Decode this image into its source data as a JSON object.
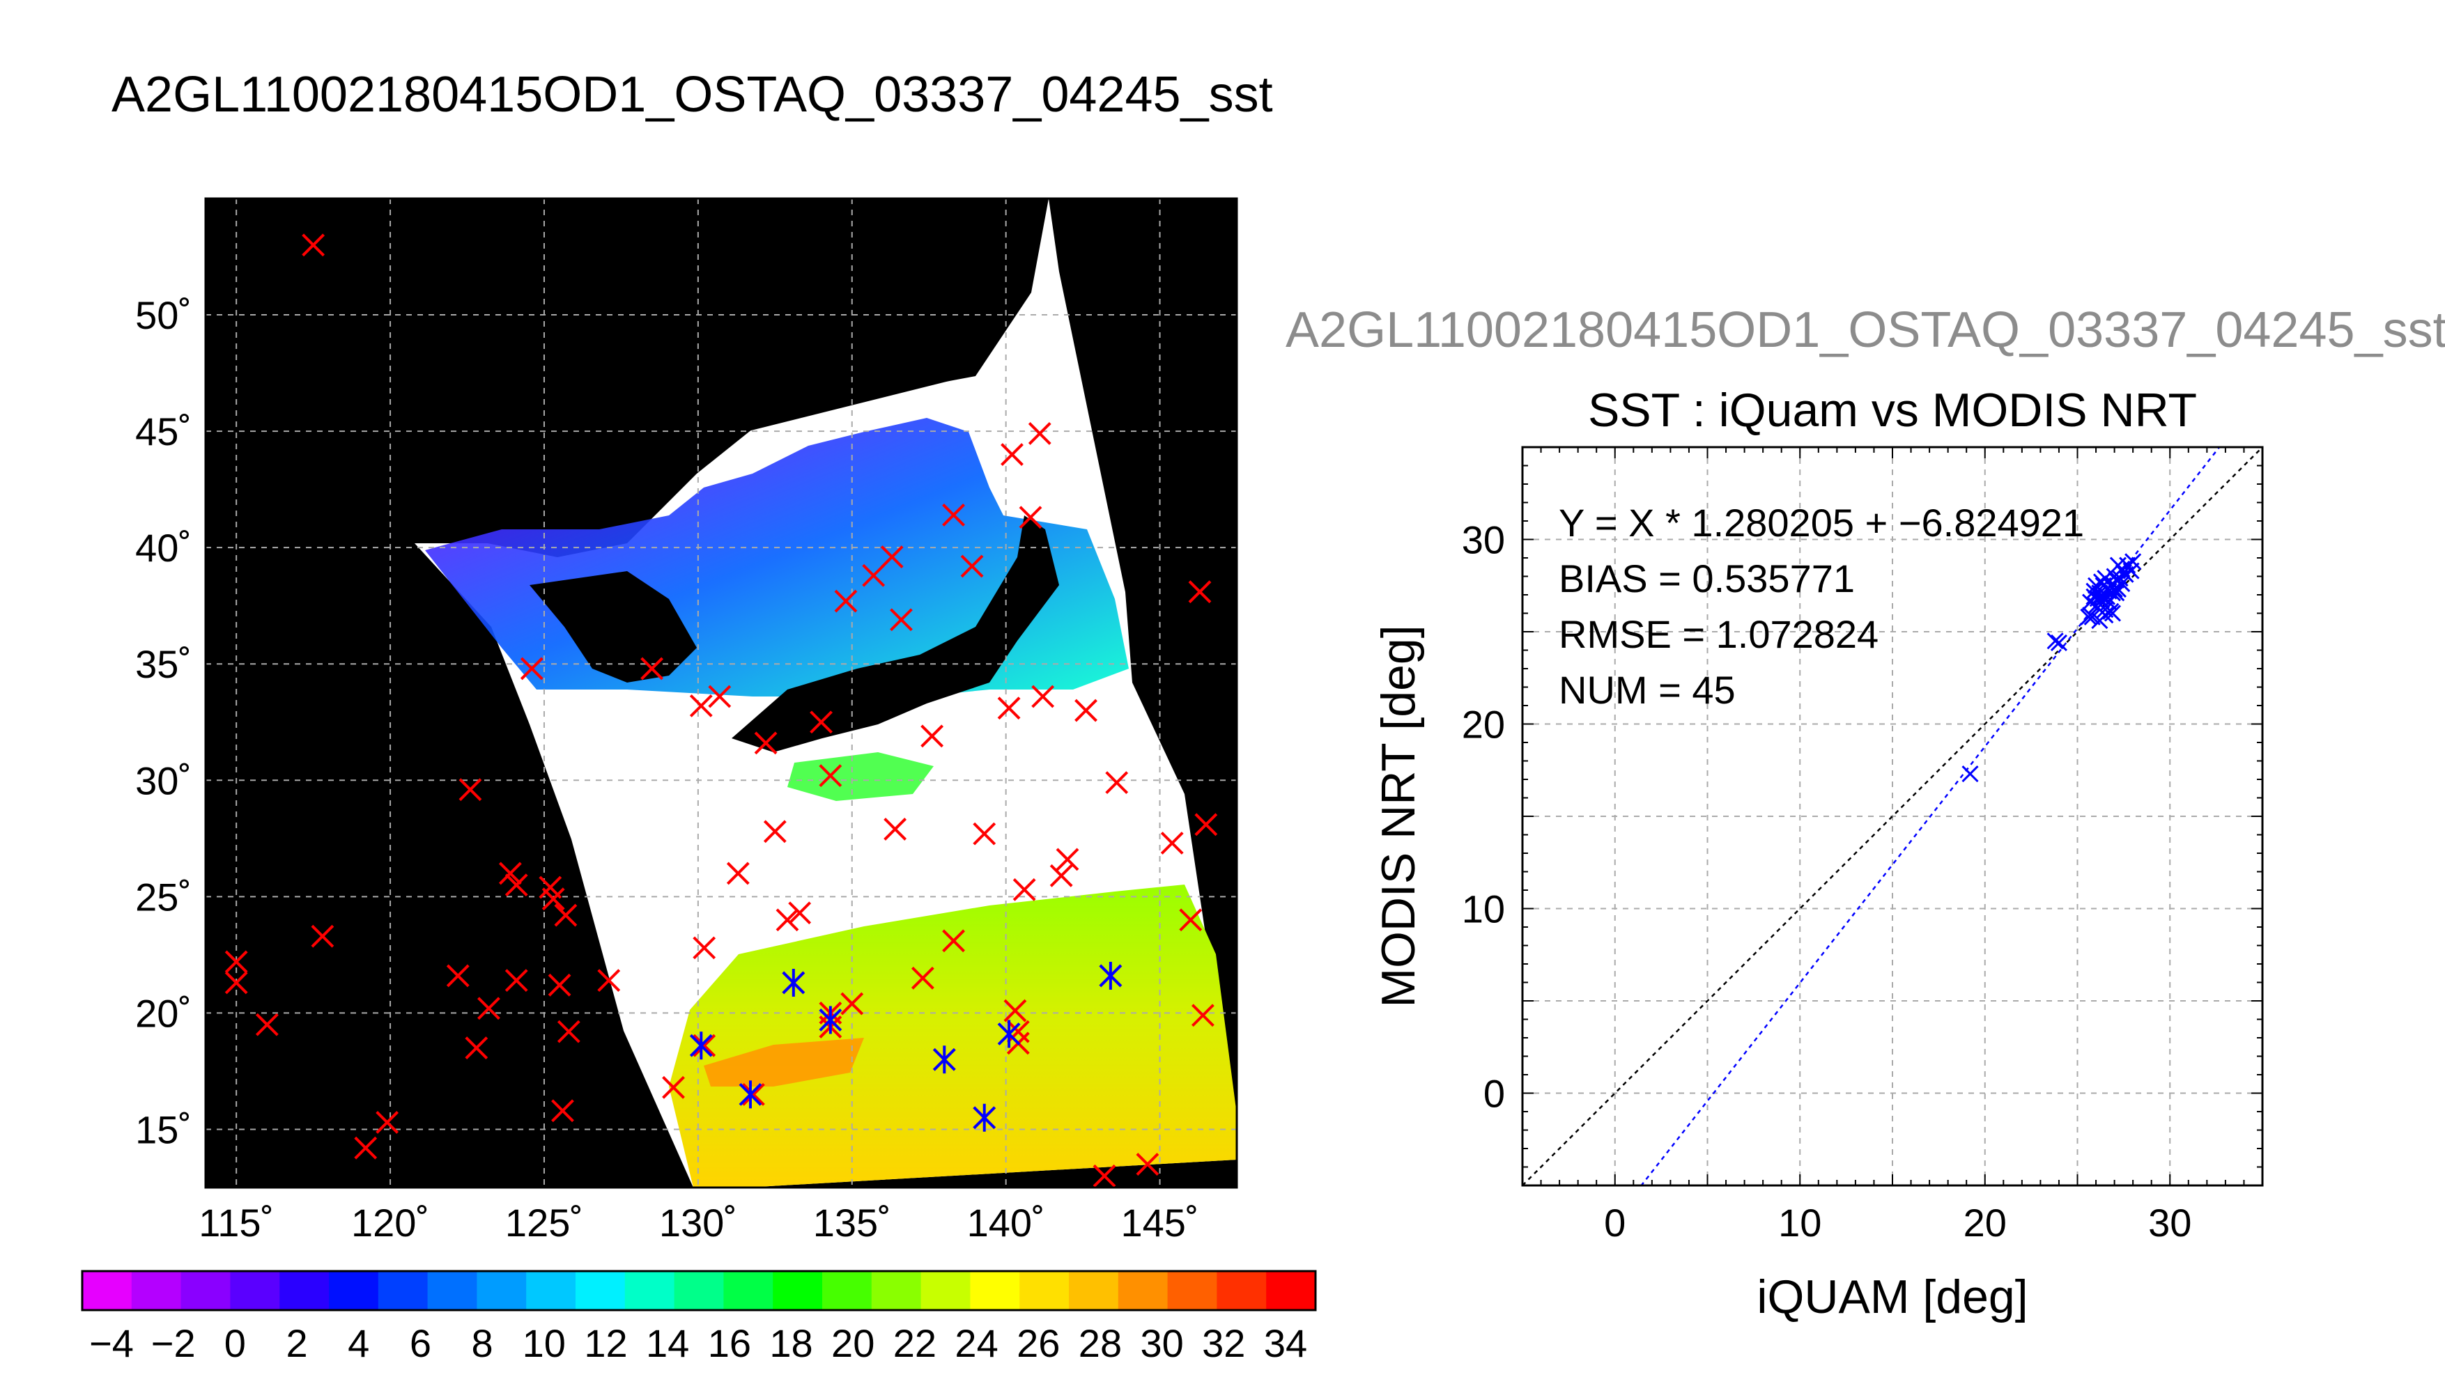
{
  "main_title": "A2GL11002180415OD1_OSTAQ_03337_04245_sst",
  "map": {
    "lon_ticks": [
      "115˚",
      "120˚",
      "125˚",
      "130˚",
      "135˚",
      "140˚",
      "145˚"
    ],
    "lat_ticks": [
      "50˚",
      "45˚",
      "40˚",
      "35˚",
      "30˚",
      "25˚",
      "20˚",
      "15˚"
    ],
    "lon_range": [
      114,
      147.5
    ],
    "lat_range": [
      12.5,
      55
    ],
    "colorbar_labels": [
      "−4",
      "−2",
      "0",
      "2",
      "4",
      "6",
      "8",
      "10",
      "12",
      "14",
      "16",
      "18",
      "20",
      "22",
      "24",
      "26",
      "28",
      "30",
      "32",
      "34"
    ],
    "colorbar_colors": [
      "#e600ff",
      "#b400ff",
      "#8a00ff",
      "#5a00ff",
      "#2a00ff",
      "#0010ff",
      "#0040ff",
      "#0070ff",
      "#009cff",
      "#00c8ff",
      "#00f0ff",
      "#00ffc8",
      "#00ff8a",
      "#00ff46",
      "#00ff00",
      "#46ff00",
      "#8aff00",
      "#c8ff00",
      "#ffff00",
      "#ffe000",
      "#ffc000",
      "#ff9000",
      "#ff6000",
      "#ff3000",
      "#ff0000"
    ],
    "colors": {
      "land": "#000000",
      "cloud": "#ffffff",
      "marker_red": "#ff0000",
      "marker_blue": "#0000ff",
      "grid": "#aaaaaa"
    }
  },
  "scatter": {
    "file_title": "A2GL11002180415OD1_OSTAQ_03337_04245_sst",
    "title": "SST : iQuam vs MODIS NRT",
    "stats": [
      "Y = X * 1.280205 + −6.824921",
      "BIAS = 0.535771",
      "RMSE = 1.072824",
      "NUM = 45"
    ],
    "colors": {
      "points": "#0000ff",
      "fit": "#0000ff",
      "one_to_one": "#000000"
    }
  },
  "chart_data": [
    {
      "type": "scatter",
      "title": "A2GL11002180415OD1_OSTAQ_03337_04245_sst",
      "xlabel": "",
      "ylabel": "",
      "xlim": [
        114,
        147.5
      ],
      "ylim": [
        12.5,
        55
      ],
      "x_ticks": [
        "115˚",
        "120˚",
        "125˚",
        "130˚",
        "135˚",
        "140˚",
        "145˚"
      ],
      "y_ticks": [
        "50˚",
        "45˚",
        "40˚",
        "35˚",
        "30˚",
        "25˚",
        "20˚",
        "15˚"
      ],
      "grid": true,
      "series": [
        {
          "marker": "x",
          "color": "#ff0000",
          "points": [
            [
              115,
              22.2
            ],
            [
              115,
              21.3
            ],
            [
              116,
              19.5
            ],
            [
              117.8,
              23.3
            ],
            [
              119.9,
              15.3
            ],
            [
              119.2,
              14.2
            ],
            [
              122.2,
              21.6
            ],
            [
              122.8,
              18.5
            ],
            [
              123.2,
              20.2
            ],
            [
              124.1,
              21.4
            ],
            [
              123.9,
              26
            ],
            [
              124.1,
              25.5
            ],
            [
              125.2,
              25.4
            ],
            [
              125.3,
              24.9
            ],
            [
              125.7,
              24.2
            ],
            [
              125.5,
              21.2
            ],
            [
              125.8,
              19.2
            ],
            [
              125.6,
              15.8
            ],
            [
              127.1,
              21.4
            ],
            [
              122.6,
              29.6
            ],
            [
              129.2,
              16.8
            ],
            [
              130.1,
              33.2
            ],
            [
              130.7,
              33.6
            ],
            [
              130.2,
              18.6
            ],
            [
              130.2,
              22.8
            ],
            [
              131.3,
              26
            ],
            [
              131.8,
              16.5
            ],
            [
              132.2,
              31.6
            ],
            [
              132.5,
              27.8
            ],
            [
              132.9,
              24
            ],
            [
              133.3,
              24.3
            ],
            [
              133.1,
              21.3
            ],
            [
              134,
              32.5
            ],
            [
              134.3,
              30.2
            ],
            [
              134.3,
              20
            ],
            [
              134.3,
              19.4
            ],
            [
              135,
              20.4
            ],
            [
              134.8,
              37.7
            ],
            [
              135.7,
              38.8
            ],
            [
              136.3,
              39.6
            ],
            [
              136.4,
              27.9
            ],
            [
              136.6,
              36.9
            ],
            [
              137.3,
              21.5
            ],
            [
              137.6,
              31.9
            ],
            [
              138,
              18
            ],
            [
              138.3,
              23.1
            ],
            [
              138.3,
              41.4
            ],
            [
              138.9,
              39.2
            ],
            [
              139.3,
              27.7
            ],
            [
              139.3,
              15.5
            ],
            [
              140.1,
              33.1
            ],
            [
              140.3,
              20.1
            ],
            [
              140.4,
              18.7
            ],
            [
              140.4,
              19.2
            ],
            [
              140.6,
              25.3
            ],
            [
              140.8,
              41.3
            ],
            [
              140.2,
              44
            ],
            [
              141.2,
              33.6
            ],
            [
              141.8,
              25.9
            ],
            [
              142,
              26.6
            ],
            [
              142.6,
              33
            ],
            [
              143.2,
              13
            ],
            [
              143.6,
              29.9
            ],
            [
              143.4,
              21.6
            ],
            [
              144.6,
              13.5
            ],
            [
              145.4,
              27.3
            ],
            [
              146,
              24
            ],
            [
              146.4,
              19.9
            ],
            [
              146.5,
              28.1
            ],
            [
              146.3,
              38.1
            ],
            [
              117.5,
              53
            ],
            [
              141.1,
              44.9
            ],
            [
              128.5,
              34.8
            ],
            [
              124.6,
              34.8
            ]
          ]
        },
        {
          "marker": "asterisk",
          "color": "#0000ff",
          "points": [
            [
              130.1,
              18.6
            ],
            [
              131.7,
              16.5
            ],
            [
              133.1,
              21.3
            ],
            [
              134.3,
              19.7
            ],
            [
              138,
              18
            ],
            [
              139.3,
              15.5
            ],
            [
              140.1,
              19.1
            ],
            [
              143.4,
              21.6
            ]
          ]
        }
      ]
    },
    {
      "type": "scatter",
      "title": "SST : iQuam vs MODIS NRT",
      "xlabel": "iQUAM [deg]",
      "ylabel": "MODIS NRT [deg]",
      "xlim": [
        -5,
        35
      ],
      "ylim": [
        -5,
        35
      ],
      "x_ticks": [
        0,
        10,
        20,
        30
      ],
      "y_ticks": [
        0,
        10,
        20,
        30
      ],
      "grid": true,
      "series": [
        {
          "marker": "x",
          "color": "#0000ff",
          "points": [
            [
              19.2,
              17.3
            ],
            [
              23.8,
              24.5
            ],
            [
              24,
              24.4
            ],
            [
              25.6,
              25.8
            ],
            [
              25.7,
              26.6
            ],
            [
              25.9,
              26.9
            ],
            [
              26,
              27.5
            ],
            [
              26.1,
              26.3
            ],
            [
              26.2,
              27.1
            ],
            [
              26.3,
              26.7
            ],
            [
              26.3,
              27.7
            ],
            [
              26.5,
              25.9
            ],
            [
              26.5,
              26.2
            ],
            [
              26.6,
              27.3
            ],
            [
              26.8,
              27.5
            ],
            [
              26.7,
              26.6
            ],
            [
              26.9,
              27.1
            ],
            [
              26.9,
              26
            ],
            [
              27.1,
              27.8
            ],
            [
              27.2,
              27.3
            ],
            [
              27.4,
              27.6
            ],
            [
              27.4,
              28.4
            ],
            [
              27.7,
              28.6
            ],
            [
              28,
              28.8
            ],
            [
              27.6,
              28.1
            ],
            [
              25.9,
              27.2
            ],
            [
              26.4,
              27.5
            ],
            [
              26.6,
              26.9
            ],
            [
              27,
              27.3
            ],
            [
              27.3,
              27.9
            ],
            [
              26.2,
              25.6
            ],
            [
              26.1,
              26.8
            ],
            [
              25.8,
              25.8
            ],
            [
              27,
              28
            ],
            [
              27.9,
              28.3
            ],
            [
              26,
              26.4
            ],
            [
              26.7,
              27.2
            ],
            [
              27.2,
              28.6
            ],
            [
              25.7,
              25.9
            ],
            [
              26.5,
              27.9
            ],
            [
              26.3,
              26.9
            ],
            [
              27.1,
              27.1
            ],
            [
              27.5,
              28.2
            ],
            [
              26.8,
              26.1
            ],
            [
              26.9,
              27.6
            ]
          ]
        },
        {
          "name": "",
          "type": "line",
          "color": "#0000ff",
          "dashed": true,
          "slope": 1.280205,
          "intercept": -6.824921
        },
        {
          "name": "",
          "type": "line",
          "color": "#000000",
          "dashed": true,
          "slope": 1,
          "intercept": 0
        }
      ]
    }
  ]
}
